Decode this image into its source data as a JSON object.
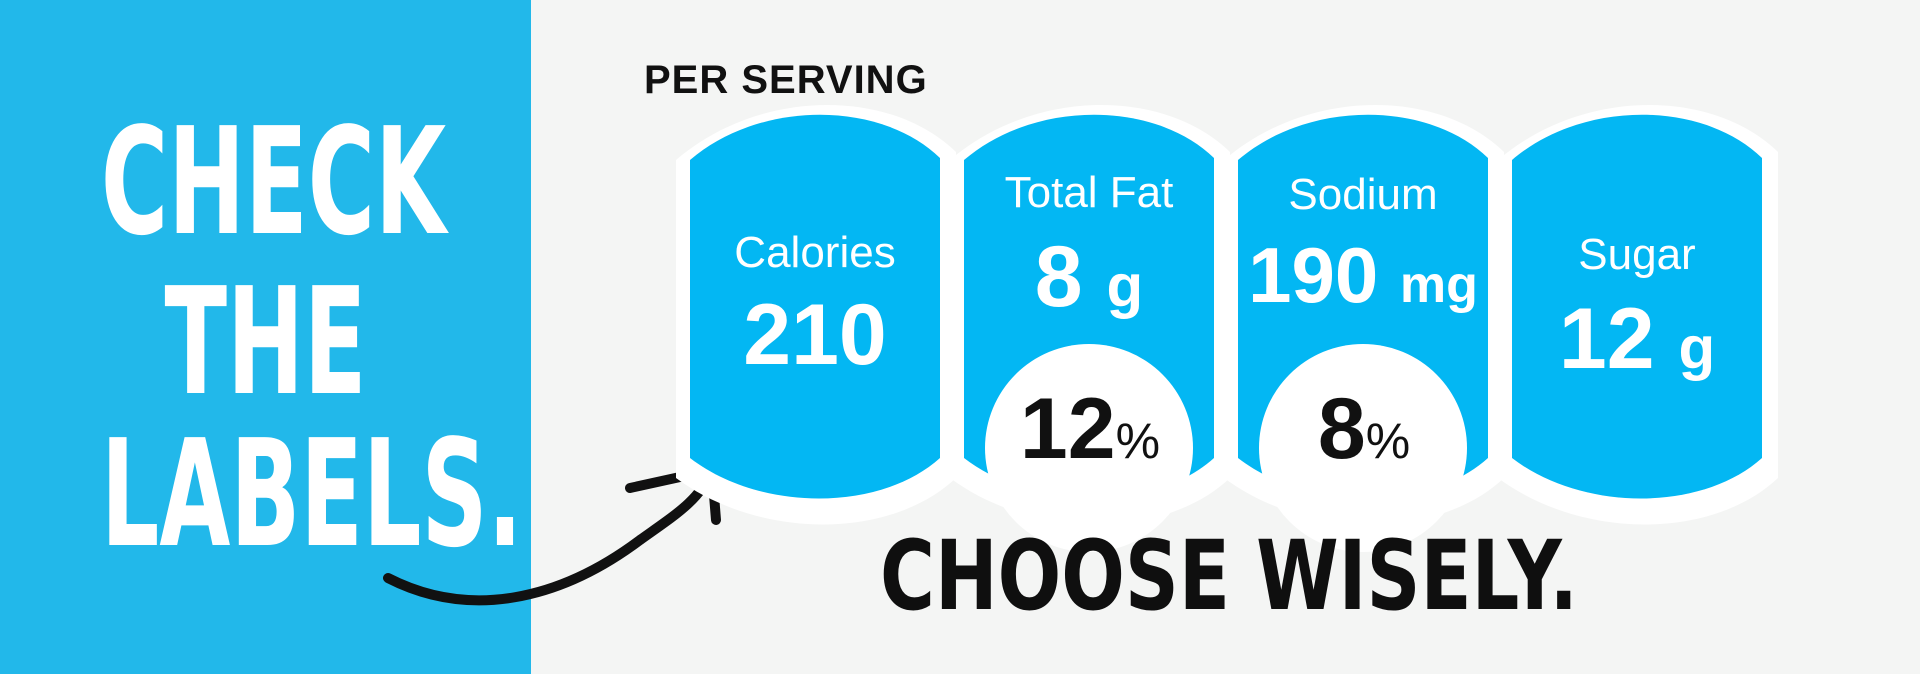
{
  "headline": {
    "line1": "CHECK",
    "line2": "THE",
    "line3": "LABELS."
  },
  "per_serving": "PER SERVING",
  "labels": [
    {
      "label": "Calories",
      "value": "210",
      "unit": "",
      "daily_value": ""
    },
    {
      "label": "Total Fat",
      "value": "8",
      "unit": "g",
      "daily_value": "12"
    },
    {
      "label": "Sodium",
      "value": "190",
      "unit": "mg",
      "daily_value": "8"
    },
    {
      "label": "Sugar",
      "value": "12",
      "unit": "g",
      "daily_value": ""
    }
  ],
  "percent_sign": "%",
  "tagline": "CHOOSE WISELY.",
  "colors": {
    "panel": "#22b8ea",
    "label_fill": "#03b7f3",
    "background": "#f4f5f4",
    "text_dark": "#111111",
    "text_light": "#ffffff"
  }
}
